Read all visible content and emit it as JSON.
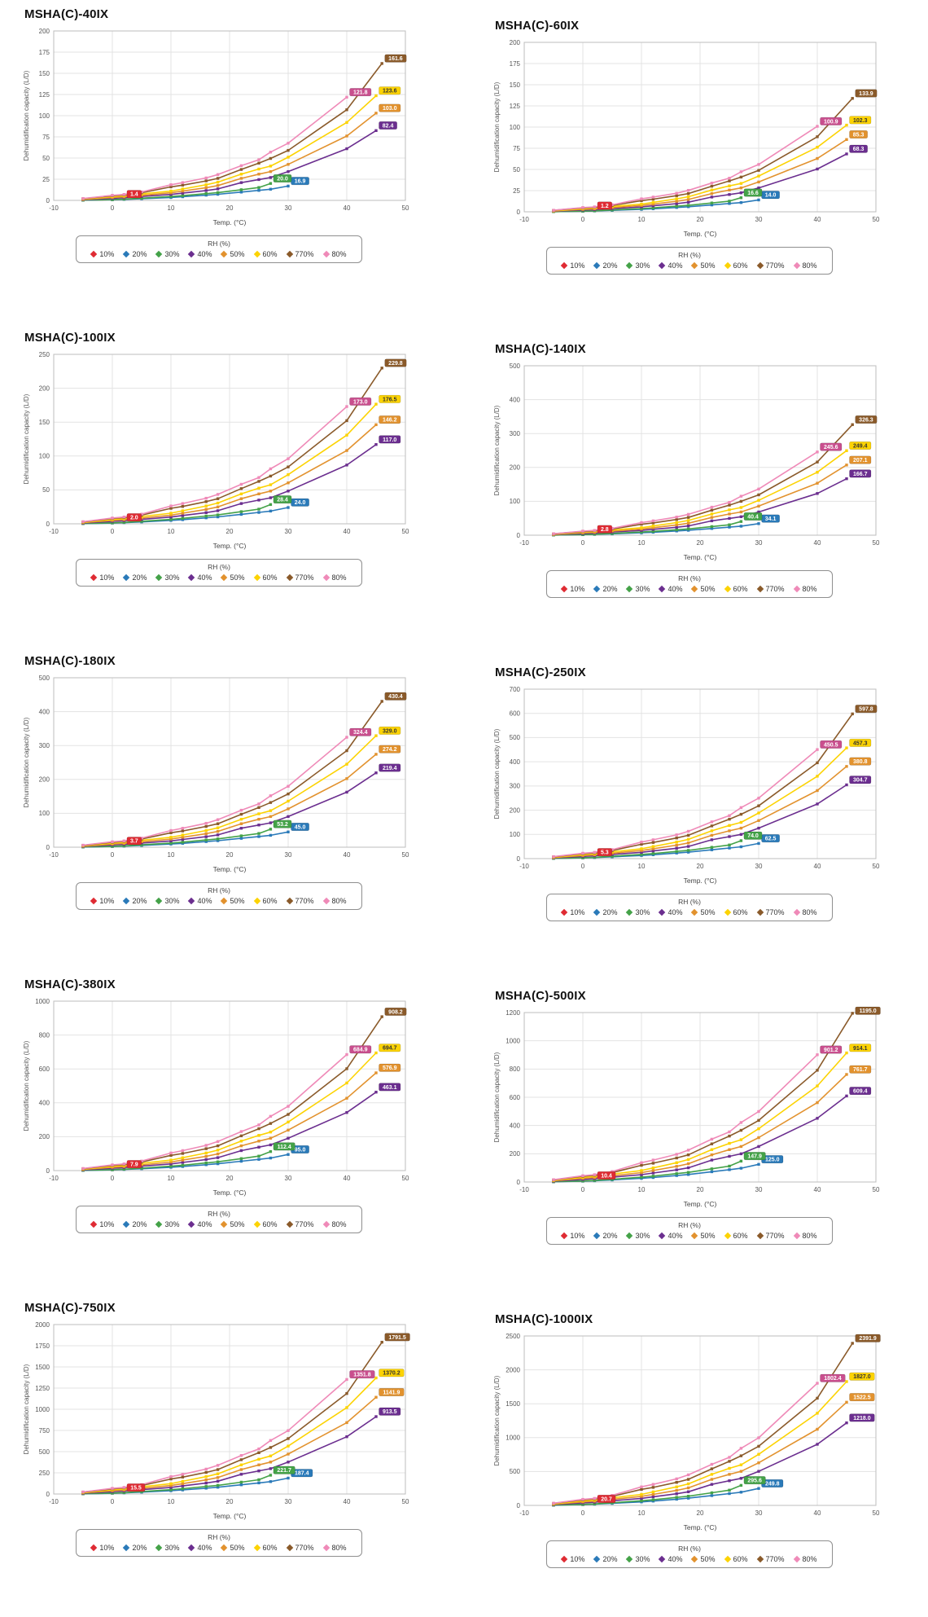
{
  "page": {
    "background": "#ffffff"
  },
  "axes": {
    "x_label": "Temp. (°C)",
    "y_label": "Dehumidification capacity (L/D)",
    "x_min": -10,
    "x_max": 50,
    "x_step": 10
  },
  "legend": {
    "title": "RH (%)"
  },
  "series_meta": [
    {
      "name": "10%",
      "color": "#df2b33",
      "label_text": "#ffffff"
    },
    {
      "name": "20%",
      "color": "#2a7ab9",
      "label_text": "#ffffff"
    },
    {
      "name": "30%",
      "color": "#44a248",
      "label_text": "#ffffff"
    },
    {
      "name": "40%",
      "color": "#6b2e8f",
      "label_text": "#ffffff"
    },
    {
      "name": "50%",
      "color": "#e2922e",
      "label_text": "#ffffff"
    },
    {
      "name": "60%",
      "color": "#fcd303",
      "label_text": "#333333"
    },
    {
      "name": "770%",
      "color": "#8a5a2a",
      "label_text": "#ffffff"
    },
    {
      "name": "80%",
      "color": "#ef8ab8",
      "label_box": "#c94f8e",
      "label_text": "#ffffff"
    }
  ],
  "base_series": {
    "x": {
      "10%": [
        -5,
        0,
        2
      ],
      "20%": [
        -5,
        0,
        2,
        5,
        10,
        12,
        16,
        18,
        22,
        25,
        27,
        30
      ],
      "30%": [
        -5,
        0,
        2,
        5,
        10,
        12,
        16,
        18,
        22,
        25,
        27
      ],
      "40%": [
        -5,
        0,
        2,
        5,
        10,
        12,
        16,
        18,
        22,
        25,
        27,
        30,
        40,
        45
      ],
      "50%": [
        -5,
        0,
        2,
        5,
        10,
        12,
        16,
        18,
        22,
        25,
        27,
        30,
        40,
        45
      ],
      "60%": [
        -5,
        0,
        2,
        5,
        10,
        12,
        16,
        18,
        22,
        25,
        27,
        30,
        40,
        45
      ],
      "770%": [
        -5,
        0,
        2,
        5,
        10,
        12,
        16,
        18,
        22,
        25,
        27,
        30,
        40,
        46
      ],
      "80%": [
        -5,
        0,
        2,
        5,
        10,
        12,
        16,
        18,
        22,
        25,
        27,
        30,
        40
      ]
    },
    "v": {
      "10%": [
        0.3,
        0.9,
        1.4
      ],
      "20%": [
        0.2,
        0.8,
        1.2,
        2.0,
        3.5,
        4.3,
        6.2,
        7.2,
        9.8,
        11.8,
        13.2,
        16.9
      ],
      "30%": [
        0.3,
        1.0,
        1.5,
        2.6,
        4.6,
        5.6,
        8.0,
        9.2,
        12.6,
        15.2,
        20.0
      ],
      "40%": [
        0.8,
        2.5,
        3.2,
        4.6,
        7.0,
        8.6,
        11.6,
        13.6,
        21.0,
        24.6,
        27.0,
        34.0,
        61.0,
        82.4
      ],
      "50%": [
        1.2,
        3.5,
        4.2,
        6.0,
        9.0,
        11.0,
        15.0,
        17.5,
        26.0,
        31.0,
        34.0,
        42.5,
        76.0,
        103.0
      ],
      "60%": [
        1.5,
        4.5,
        5.5,
        7.6,
        11.0,
        13.5,
        18.5,
        21.5,
        31.0,
        37.0,
        40.5,
        51.0,
        92.0,
        123.6
      ],
      "770%": [
        2.0,
        5.5,
        6.5,
        9.0,
        16.0,
        18.0,
        23.0,
        26.0,
        36.5,
        44.0,
        49.5,
        59.0,
        107.0,
        161.6
      ],
      "80%": [
        2.2,
        6.0,
        7.0,
        10.0,
        18.5,
        21.0,
        26.5,
        30.5,
        41.0,
        48.0,
        57.0,
        67.5,
        121.8
      ]
    }
  },
  "chart_data": [
    {
      "type": "line",
      "title": "MSHA(C)-40IX",
      "ylim": [
        0,
        200
      ],
      "ytick": 25,
      "k": 1,
      "end_labels": {
        "10%": "1.4",
        "20%": "16.9",
        "30%": "20.0",
        "40%": "82.4",
        "50%": "103.0",
        "60%": "123.6",
        "770%": "161.6",
        "80%": "121.8"
      }
    },
    {
      "type": "line",
      "title": "MSHA(C)-60IX",
      "ylim": [
        0,
        200
      ],
      "ytick": 25,
      "k": 0.828,
      "end_labels": {
        "10%": "1.2",
        "20%": "14.0",
        "30%": "16.6",
        "40%": "68.3",
        "50%": "85.3",
        "60%": "102.3",
        "770%": "133.9",
        "80%": "100.9"
      }
    },
    {
      "type": "line",
      "title": "MSHA(C)-100IX",
      "ylim": [
        0,
        250
      ],
      "ytick": 50,
      "k": 1.422,
      "end_labels": {
        "10%": "2.0",
        "20%": "24.0",
        "30%": "28.4",
        "40%": "117.0",
        "50%": "146.2",
        "60%": "176.5",
        "770%": "229.8",
        "80%": "173.0"
      }
    },
    {
      "type": "line",
      "title": "MSHA(C)-140IX",
      "ylim": [
        0,
        500
      ],
      "ytick": 100,
      "k": 2.018,
      "end_labels": {
        "10%": "2.8",
        "20%": "34.1",
        "30%": "40.4",
        "40%": "166.7",
        "50%": "207.1",
        "60%": "249.4",
        "770%": "326.3",
        "80%": "245.6"
      }
    },
    {
      "type": "line",
      "title": "MSHA(C)-180IX",
      "ylim": [
        0,
        500
      ],
      "ytick": 100,
      "k": 2.662,
      "end_labels": {
        "10%": "3.7",
        "20%": "45.0",
        "30%": "53.2",
        "40%": "219.4",
        "50%": "274.2",
        "60%": "329.0",
        "770%": "430.4",
        "80%": "324.4"
      }
    },
    {
      "type": "line",
      "title": "MSHA(C)-250IX",
      "ylim": [
        0,
        700
      ],
      "ytick": 100,
      "k": 3.699,
      "end_labels": {
        "10%": "5.3",
        "20%": "62.5",
        "30%": "74.0",
        "40%": "304.7",
        "50%": "380.8",
        "60%": "457.3",
        "770%": "597.8",
        "80%": "450.5"
      }
    },
    {
      "type": "line",
      "title": "MSHA(C)-380IX",
      "ylim": [
        0,
        1000
      ],
      "ytick": 200,
      "k": 5.62,
      "end_labels": {
        "10%": "7.9",
        "20%": "95.0",
        "30%": "112.4",
        "40%": "463.1",
        "50%": "576.9",
        "60%": "694.7",
        "770%": "908.2",
        "80%": "684.9"
      }
    },
    {
      "type": "line",
      "title": "MSHA(C)-500IX",
      "ylim": [
        0,
        1200
      ],
      "ytick": 200,
      "k": 7.395,
      "end_labels": {
        "10%": "10.4",
        "20%": "125.0",
        "30%": "147.9",
        "40%": "609.4",
        "50%": "761.7",
        "60%": "914.1",
        "770%": "1195.0",
        "80%": "901.2"
      }
    },
    {
      "type": "line",
      "title": "MSHA(C)-750IX",
      "ylim": [
        0,
        2000
      ],
      "ytick": 250,
      "k": 11.086,
      "end_labels": {
        "10%": "15.5",
        "20%": "187.4",
        "30%": "221.7",
        "40%": "913.5",
        "50%": "1141.9",
        "60%": "1370.2",
        "770%": "1791.5",
        "80%": "1351.8"
      }
    },
    {
      "type": "line",
      "title": "MSHA(C)-1000IX",
      "ylim": [
        0,
        2500
      ],
      "ytick": 500,
      "k": 14.782,
      "end_labels": {
        "10%": "20.7",
        "20%": "249.8",
        "30%": "295.6",
        "40%": "1218.0",
        "50%": "1522.5",
        "60%": "1827.0",
        "770%": "2391.9",
        "80%": "1802.4"
      }
    }
  ]
}
